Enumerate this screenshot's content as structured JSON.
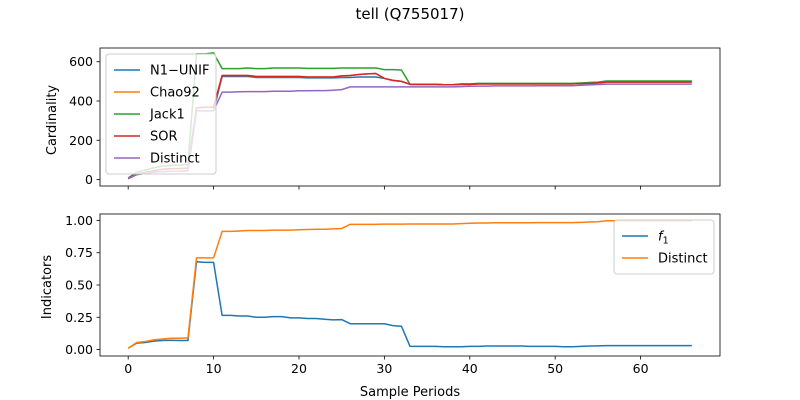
{
  "figure": {
    "title": "tell (Q755017)"
  },
  "colors": {
    "N1-UNIF": "#1f77b4",
    "Chao92": "#ff7f0e",
    "Jack1": "#2ca02c",
    "SOR": "#d62728",
    "Distinct": "#9467bd"
  },
  "chart_data": [
    {
      "type": "line",
      "title": "",
      "xlabel": "",
      "ylabel": "Cardinality",
      "xlim": [
        -3.3,
        69.3
      ],
      "ylim": [
        -33,
        670
      ],
      "xticks": [
        0,
        10,
        20,
        30,
        40,
        50,
        60
      ],
      "yticks": [
        0,
        200,
        400,
        600
      ],
      "grid": false,
      "legend": "upper-left",
      "x": [
        0,
        1,
        2,
        3,
        4,
        5,
        6,
        7,
        8,
        9,
        10,
        11,
        12,
        13,
        14,
        15,
        16,
        17,
        18,
        19,
        20,
        21,
        22,
        23,
        24,
        25,
        26,
        27,
        28,
        29,
        30,
        31,
        32,
        33,
        34,
        35,
        36,
        37,
        38,
        39,
        40,
        41,
        42,
        43,
        44,
        45,
        46,
        47,
        48,
        49,
        50,
        51,
        52,
        53,
        54,
        55,
        56,
        57,
        58,
        59,
        60,
        61,
        62,
        63,
        64,
        65,
        66
      ],
      "series": [
        {
          "name": "N1−UNIF",
          "color": "#1f77b4",
          "values": [
            5,
            25,
            32,
            38,
            40,
            42,
            42,
            45,
            350,
            350,
            350,
            525,
            525,
            525,
            525,
            520,
            520,
            520,
            520,
            520,
            520,
            518,
            518,
            518,
            518,
            520,
            520,
            522,
            522,
            522,
            515,
            505,
            500,
            485,
            485,
            485,
            485,
            483,
            483,
            485,
            485,
            487,
            487,
            487,
            487,
            487,
            487,
            487,
            487,
            487,
            487,
            487,
            487,
            489,
            490,
            492,
            497,
            497,
            497,
            497,
            497,
            497,
            497,
            497,
            497,
            497,
            497
          ]
        },
        {
          "name": "Chao92",
          "color": "#ff7f0e",
          "values": [
            5,
            28,
            36,
            45,
            52,
            55,
            56,
            58,
            365,
            368,
            368,
            530,
            530,
            530,
            530,
            525,
            525,
            525,
            525,
            525,
            525,
            522,
            522,
            522,
            522,
            528,
            530,
            535,
            538,
            540,
            515,
            505,
            500,
            485,
            485,
            485,
            485,
            483,
            483,
            485,
            485,
            487,
            487,
            487,
            487,
            487,
            487,
            487,
            487,
            487,
            487,
            487,
            487,
            489,
            490,
            492,
            497,
            497,
            497,
            497,
            497,
            497,
            497,
            497,
            497,
            497,
            497
          ]
        },
        {
          "name": "Jack1",
          "color": "#2ca02c",
          "values": [
            8,
            38,
            48,
            60,
            68,
            72,
            74,
            78,
            640,
            640,
            645,
            565,
            565,
            565,
            568,
            565,
            565,
            568,
            568,
            568,
            568,
            566,
            566,
            566,
            566,
            568,
            568,
            568,
            568,
            568,
            560,
            560,
            558,
            485,
            485,
            485,
            485,
            483,
            483,
            487,
            487,
            490,
            490,
            490,
            490,
            490,
            490,
            490,
            490,
            490,
            490,
            490,
            490,
            492,
            494,
            496,
            502,
            502,
            502,
            502,
            502,
            502,
            502,
            502,
            502,
            502,
            502
          ]
        },
        {
          "name": "SOR",
          "color": "#d62728",
          "values": [
            5,
            28,
            36,
            45,
            52,
            55,
            56,
            58,
            365,
            368,
            368,
            530,
            530,
            530,
            530,
            525,
            525,
            525,
            525,
            525,
            525,
            522,
            522,
            522,
            522,
            528,
            530,
            535,
            538,
            540,
            515,
            505,
            500,
            485,
            485,
            485,
            485,
            483,
            483,
            485,
            485,
            487,
            487,
            487,
            487,
            487,
            487,
            487,
            487,
            487,
            487,
            487,
            487,
            489,
            490,
            492,
            497,
            497,
            497,
            497,
            497,
            497,
            497,
            497,
            497,
            497,
            497
          ]
        },
        {
          "name": "Distinct",
          "color": "#9467bd",
          "values": [
            5,
            25,
            32,
            38,
            40,
            42,
            42,
            45,
            350,
            350,
            350,
            445,
            445,
            447,
            448,
            448,
            448,
            450,
            450,
            450,
            452,
            452,
            453,
            453,
            455,
            458,
            472,
            472,
            472,
            472,
            472,
            472,
            472,
            472,
            472,
            472,
            472,
            472,
            472,
            473,
            475,
            476,
            476,
            477,
            477,
            477,
            477,
            477,
            478,
            478,
            478,
            478,
            478,
            480,
            482,
            484,
            486,
            486,
            486,
            486,
            486,
            486,
            486,
            486,
            486,
            486,
            486
          ]
        }
      ]
    },
    {
      "type": "line",
      "title": "",
      "xlabel": "Sample Periods",
      "ylabel": "Indicators",
      "xlim": [
        -3.3,
        69.3
      ],
      "ylim": [
        -0.05,
        1.05
      ],
      "xticks": [
        0,
        10,
        20,
        30,
        40,
        50,
        60
      ],
      "yticks": [
        "0.00",
        "0.25",
        "0.50",
        "0.75",
        "1.00"
      ],
      "grid": false,
      "legend": "upper-right",
      "x": [
        0,
        1,
        2,
        3,
        4,
        5,
        6,
        7,
        8,
        9,
        10,
        11,
        12,
        13,
        14,
        15,
        16,
        17,
        18,
        19,
        20,
        21,
        22,
        23,
        24,
        25,
        26,
        27,
        28,
        29,
        30,
        31,
        32,
        33,
        34,
        35,
        36,
        37,
        38,
        39,
        40,
        41,
        42,
        43,
        44,
        45,
        46,
        47,
        48,
        49,
        50,
        51,
        52,
        53,
        54,
        55,
        56,
        57,
        58,
        59,
        60,
        61,
        62,
        63,
        64,
        65,
        66
      ],
      "series": [
        {
          "name": "f1",
          "label_main": "f",
          "label_sub": "1",
          "color": "#1f77b4",
          "values": [
            0.01,
            0.05,
            0.055,
            0.065,
            0.07,
            0.072,
            0.07,
            0.07,
            0.68,
            0.675,
            0.675,
            0.265,
            0.265,
            0.26,
            0.26,
            0.25,
            0.25,
            0.255,
            0.255,
            0.245,
            0.245,
            0.24,
            0.24,
            0.235,
            0.23,
            0.232,
            0.2,
            0.2,
            0.2,
            0.2,
            0.2,
            0.185,
            0.18,
            0.025,
            0.025,
            0.025,
            0.025,
            0.022,
            0.022,
            0.022,
            0.025,
            0.025,
            0.027,
            0.027,
            0.027,
            0.027,
            0.027,
            0.025,
            0.025,
            0.025,
            0.025,
            0.022,
            0.022,
            0.025,
            0.027,
            0.028,
            0.03,
            0.03,
            0.03,
            0.03,
            0.03,
            0.03,
            0.03,
            0.03,
            0.03,
            0.03,
            0.03
          ]
        },
        {
          "name": "Distinct",
          "color": "#ff7f0e",
          "values": [
            0.01,
            0.055,
            0.062,
            0.075,
            0.082,
            0.088,
            0.088,
            0.09,
            0.71,
            0.71,
            0.71,
            0.915,
            0.915,
            0.918,
            0.922,
            0.922,
            0.922,
            0.925,
            0.925,
            0.925,
            0.928,
            0.93,
            0.932,
            0.932,
            0.935,
            0.938,
            0.97,
            0.97,
            0.97,
            0.97,
            0.972,
            0.972,
            0.972,
            0.973,
            0.973,
            0.973,
            0.973,
            0.973,
            0.973,
            0.975,
            0.978,
            0.98,
            0.98,
            0.982,
            0.982,
            0.982,
            0.982,
            0.982,
            0.983,
            0.983,
            0.983,
            0.983,
            0.983,
            0.985,
            0.988,
            0.99,
            0.998,
            0.998,
            0.998,
            0.998,
            0.998,
            0.998,
            0.998,
            0.998,
            0.998,
            0.998,
            0.998
          ]
        }
      ]
    }
  ]
}
